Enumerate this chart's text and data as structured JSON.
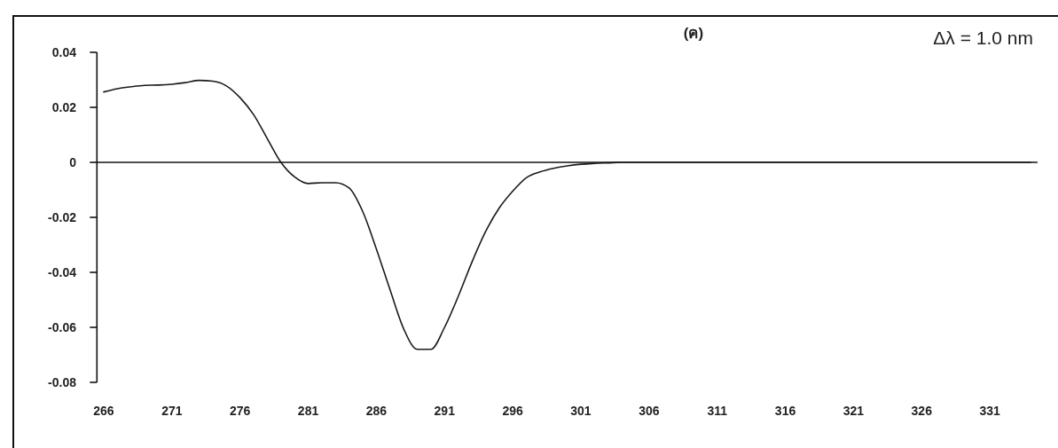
{
  "chart_data": {
    "type": "line",
    "title": "(ค)",
    "annotations": [
      "Δλ = 1.0 nm"
    ],
    "x": [
      266,
      267,
      268,
      269,
      270,
      271,
      272,
      273,
      274,
      275,
      276,
      277,
      278,
      279,
      280,
      281,
      282,
      283,
      284,
      285,
      286,
      287,
      288,
      289,
      290,
      291,
      292,
      293,
      294,
      295,
      296,
      297,
      298,
      299,
      300,
      301,
      302,
      303,
      304,
      305,
      306,
      307,
      308,
      309,
      310,
      311,
      312,
      313,
      314,
      315,
      316,
      317,
      318,
      319,
      320,
      321,
      322,
      323,
      324,
      325,
      326,
      327,
      328,
      329,
      330,
      331,
      332,
      333,
      334
    ],
    "series": [
      {
        "color": "#1a1a1a",
        "values": [
          0.0256,
          0.0268,
          0.0275,
          0.028,
          0.0281,
          0.0284,
          0.029,
          0.0298,
          0.0295,
          0.0278,
          0.0235,
          0.0173,
          0.0086,
          0,
          -0.0053,
          -0.0077,
          -0.0074,
          -0.0074,
          -0.0093,
          -0.0179,
          -0.0315,
          -0.0463,
          -0.0605,
          -0.068,
          -0.068,
          -0.06,
          -0.0488,
          -0.0364,
          -0.0253,
          -0.0167,
          -0.0105,
          -0.0056,
          -0.0035,
          -0.0022,
          -0.0013,
          -0.0007,
          -0.0004,
          -0.0002,
          0,
          0,
          0,
          0,
          0,
          0,
          0,
          0,
          0,
          0,
          0,
          0,
          0,
          0,
          0,
          0,
          0,
          0,
          0,
          0,
          0,
          0,
          0,
          0,
          0,
          0,
          0,
          0,
          0,
          0,
          0
        ]
      }
    ],
    "xlim": [
      265.5,
      334.5
    ],
    "xticks": [
      266,
      271,
      276,
      281,
      286,
      291,
      296,
      301,
      306,
      311,
      316,
      321,
      326,
      331
    ],
    "ylim": [
      -0.08,
      0.04
    ],
    "yticks": [
      0.04,
      0.02,
      0,
      -0.02,
      -0.04,
      -0.06,
      -0.08
    ]
  }
}
